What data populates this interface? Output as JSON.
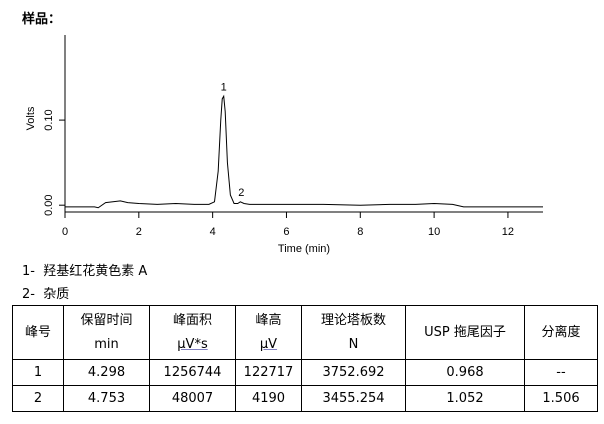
{
  "header": {
    "title": "样品："
  },
  "chart_data": {
    "type": "line",
    "ylabel": "Volts",
    "xlabel": "Time (min)",
    "xlim": [
      0,
      12.95
    ],
    "ylim": [
      -0.008,
      0.2
    ],
    "xticks": [
      0,
      2,
      4,
      6,
      8,
      10,
      12
    ],
    "yticks": [
      {
        "value": 0,
        "label": "0.00"
      },
      {
        "value": 0.1,
        "label": "0.10"
      }
    ],
    "series": [
      {
        "color": "#000000",
        "x": [
          0,
          0.8,
          0.9,
          1.1,
          1.3,
          1.5,
          1.7,
          2.0,
          2.5,
          3.0,
          3.5,
          3.9,
          4.05,
          4.15,
          4.22,
          4.26,
          4.3,
          4.34,
          4.4,
          4.48,
          4.58,
          4.68,
          4.75,
          4.85,
          5.0,
          6,
          7,
          8,
          8.8,
          9.5,
          10.0,
          10.5,
          10.8,
          11,
          12,
          12.95
        ],
        "values": [
          -0.002,
          -0.002,
          -0.003,
          0.003,
          0.004,
          0.005,
          0.003,
          0.002,
          0.001,
          0.002,
          0.001,
          0.001,
          0.004,
          0.04,
          0.1,
          0.125,
          0.128,
          0.11,
          0.05,
          0.012,
          0.002,
          0.002,
          0.004,
          0.002,
          0.001,
          0.001,
          0.001,
          0.0,
          0.001,
          0.001,
          0.002,
          0.001,
          -0.002,
          -0.002,
          -0.002,
          -0.002
        ]
      }
    ],
    "annotations": [
      {
        "text": "1",
        "x": 4.3,
        "y": 0.128
      },
      {
        "text": "2",
        "x": 4.75,
        "y": 0.004
      }
    ]
  },
  "legend": [
    "1-  羟基红花黄色素 A",
    "2-  杂质"
  ],
  "table": {
    "header": [
      [
        "峰号"
      ],
      [
        "保留时间",
        "min"
      ],
      [
        "峰面积",
        "μV*s"
      ],
      [
        "峰高",
        "μV"
      ],
      [
        "理论塔板数",
        "N"
      ],
      [
        "USP 拖尾因子"
      ],
      [
        "分离度"
      ]
    ],
    "rows": [
      [
        "1",
        "4.298",
        "1256744",
        "122717",
        "3752.692",
        "0.968",
        "--"
      ],
      [
        "2",
        "4.753",
        "48007",
        "4190",
        "3455.254",
        "1.052",
        "1.506"
      ]
    ]
  }
}
